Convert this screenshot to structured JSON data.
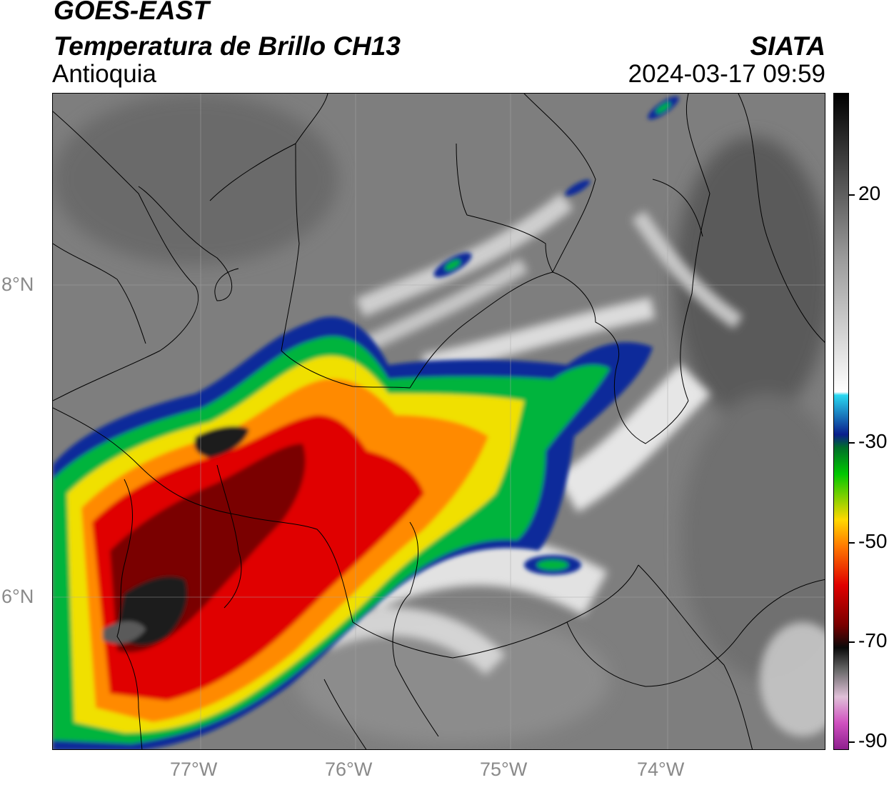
{
  "header": {
    "line1": "GOES-EAST",
    "line2": "Temperatura de Brillo CH13",
    "line3": "Antioquia",
    "org": "SIATA",
    "datetime": "2024-03-17 09:59"
  },
  "axes": {
    "lat_labels": [
      "8°N",
      "6°N"
    ],
    "lon_labels": [
      "77°W",
      "76°W",
      "75°W",
      "74°W"
    ]
  },
  "colorbar": {
    "tick_labels": [
      "20",
      "-30",
      "-50",
      "-70",
      "-90"
    ],
    "stops": [
      {
        "t": 0.0,
        "color": "#8e1f8e"
      },
      {
        "t": 0.04,
        "color": "#d050c0"
      },
      {
        "t": 0.08,
        "color": "#e0c0d8"
      },
      {
        "t": 0.12,
        "color": "#6a6a6a"
      },
      {
        "t": 0.155,
        "color": "#0a0a0a"
      },
      {
        "t": 0.19,
        "color": "#7a0000"
      },
      {
        "t": 0.25,
        "color": "#e00000"
      },
      {
        "t": 0.31,
        "color": "#ff7a00"
      },
      {
        "t": 0.35,
        "color": "#ffd800"
      },
      {
        "t": 0.42,
        "color": "#00c800"
      },
      {
        "t": 0.46,
        "color": "#006e2a"
      },
      {
        "t": 0.48,
        "color": "#0a1e8c"
      },
      {
        "t": 0.54,
        "color": "#2ad8f0"
      },
      {
        "t": 0.545,
        "color": "#ffffff"
      },
      {
        "t": 0.75,
        "color": "#9a9a9a"
      },
      {
        "t": 1.0,
        "color": "#000000"
      }
    ]
  }
}
